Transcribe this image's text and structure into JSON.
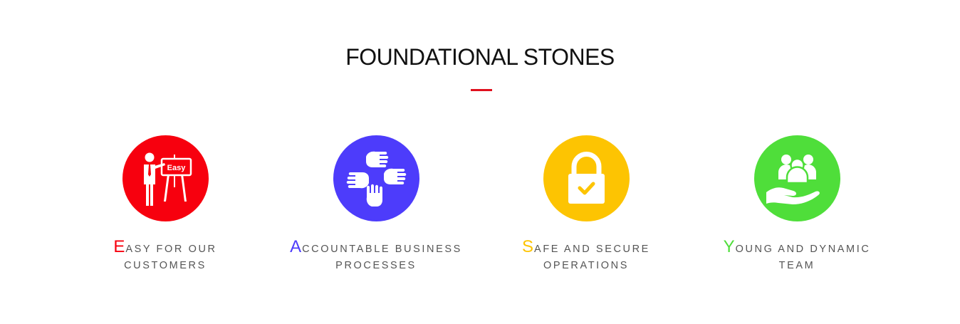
{
  "section": {
    "title": "FOUNDATIONAL STONES",
    "accent_color": "#e0101e"
  },
  "features": [
    {
      "initial": "E",
      "line1_rest": "asy for our",
      "line2": "customers",
      "color": "#f7000e",
      "icon": "presenter-easy-board-icon",
      "board_text": "Easy"
    },
    {
      "initial": "A",
      "line1_rest": "ccountable business",
      "line2": "processes",
      "color": "#4d3cfb",
      "icon": "four-hands-teamwork-icon"
    },
    {
      "initial": "S",
      "line1_rest": "afe and secure",
      "line2": "operations",
      "color": "#fdc402",
      "icon": "padlock-check-icon"
    },
    {
      "initial": "Y",
      "line1_rest": "oung and dynamic",
      "line2": "team",
      "color": "#4fde3a",
      "icon": "hand-holding-people-icon"
    }
  ]
}
